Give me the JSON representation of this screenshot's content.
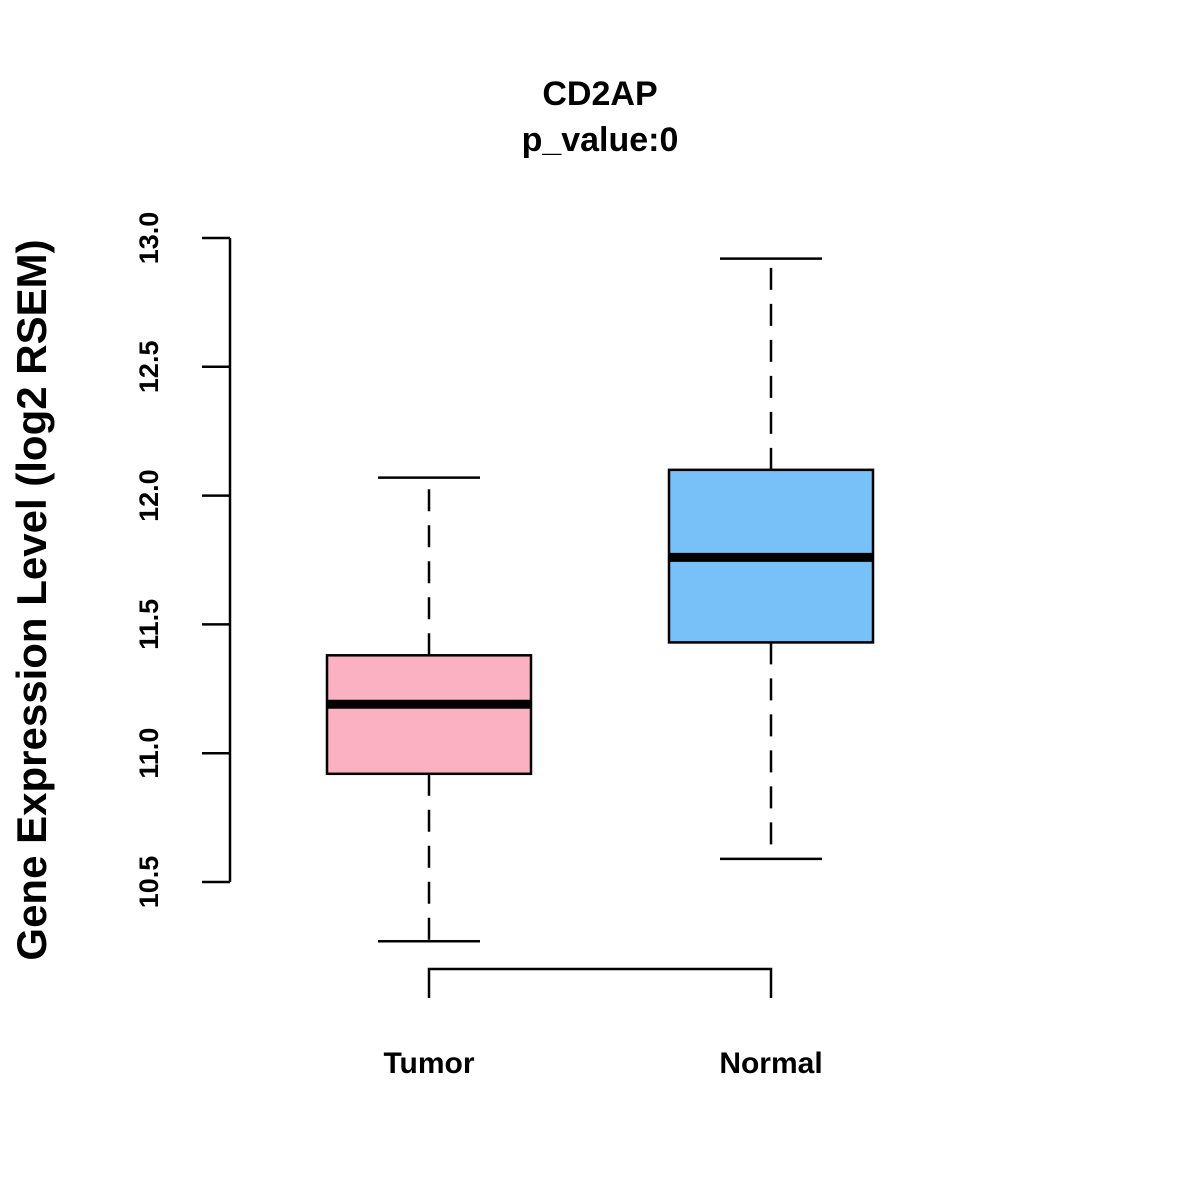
{
  "chart_data": {
    "type": "boxplot",
    "title": "CD2AP",
    "subtitle": "p_value:0",
    "xlabel": "",
    "ylabel": "Gene Expression Level (log2 RSEM)",
    "ylim": [
      10.5,
      13.0
    ],
    "yticks": [
      "10.5",
      "11.0",
      "11.5",
      "12.0",
      "12.5",
      "13.0"
    ],
    "categories": [
      "Tumor",
      "Normal"
    ],
    "boxes": [
      {
        "name": "Tumor",
        "whisker_low": 10.27,
        "q1": 10.92,
        "median": 11.19,
        "q3": 11.38,
        "whisker_high": 12.07,
        "color": "#FBB1C2"
      },
      {
        "name": "Normal",
        "whisker_low": 10.59,
        "q1": 11.43,
        "median": 11.76,
        "q3": 12.1,
        "whisker_high": 12.92,
        "color": "#77C1F8"
      }
    ],
    "comparison_bracket": [
      "Tumor",
      "Normal"
    ],
    "grid": false,
    "legend": "none"
  }
}
